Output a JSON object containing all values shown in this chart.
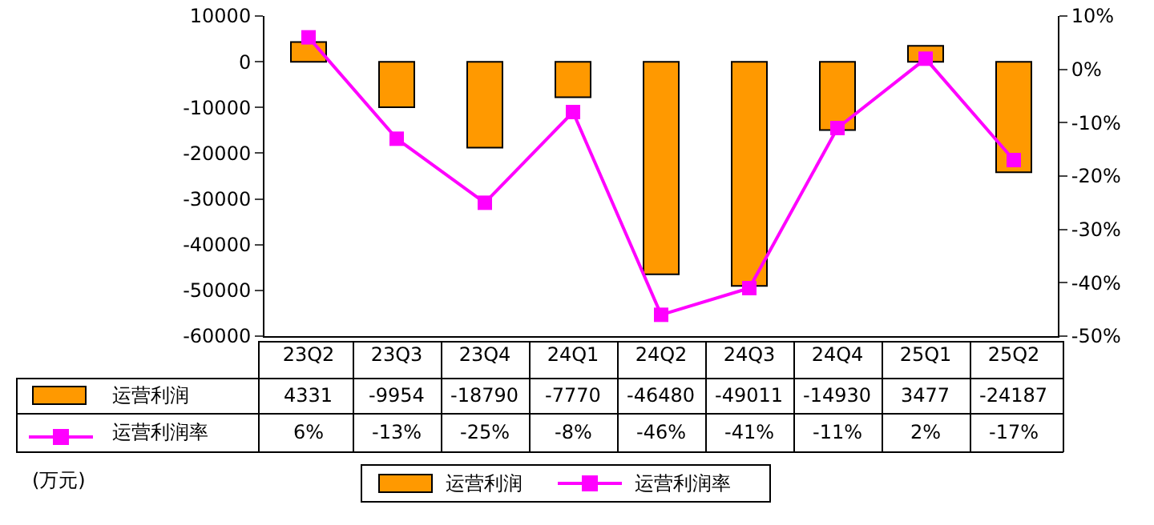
{
  "chart_data": {
    "type": "bar",
    "categories": [
      "23Q2",
      "23Q3",
      "23Q4",
      "24Q1",
      "24Q2",
      "24Q3",
      "24Q4",
      "25Q1",
      "25Q2"
    ],
    "series": [
      {
        "name": "运营利润",
        "color": "#ff9900",
        "values": [
          4331,
          -9954,
          -18790,
          -7770,
          -46480,
          -49011,
          -14930,
          3477,
          -24187
        ],
        "value_labels": [
          "4331",
          "-9954",
          "-18790",
          "-7770",
          "-46480",
          "-49011",
          "-14930",
          "3477",
          "-24187"
        ]
      },
      {
        "name": "运营利润率",
        "type": "line",
        "axis": "y2",
        "color": "#ff00ff",
        "marker": "square",
        "values": [
          6,
          -13,
          -25,
          -8,
          -46,
          -41,
          -11,
          2,
          -17
        ],
        "value_labels": [
          "6%",
          "-13%",
          "-25%",
          "-8%",
          "-46%",
          "-41%",
          "-11%",
          "2%",
          "-17%"
        ]
      }
    ],
    "ylim": [
      -60000,
      10000
    ],
    "yticks": [
      -60000,
      -50000,
      -40000,
      -30000,
      -20000,
      -10000,
      0,
      10000
    ],
    "y2lim": [
      -50,
      10
    ],
    "y2ticks": [
      {
        "value": -50,
        "label": "-50%"
      },
      {
        "value": -40,
        "label": "-40%"
      },
      {
        "value": -30,
        "label": "-30%"
      },
      {
        "value": -20,
        "label": "-20%"
      },
      {
        "value": -10,
        "label": "-10%"
      },
      {
        "value": 0,
        "label": "0%"
      },
      {
        "value": 10,
        "label": "10%"
      }
    ],
    "legend": "bottom",
    "annotations": [
      "(万元)"
    ]
  }
}
